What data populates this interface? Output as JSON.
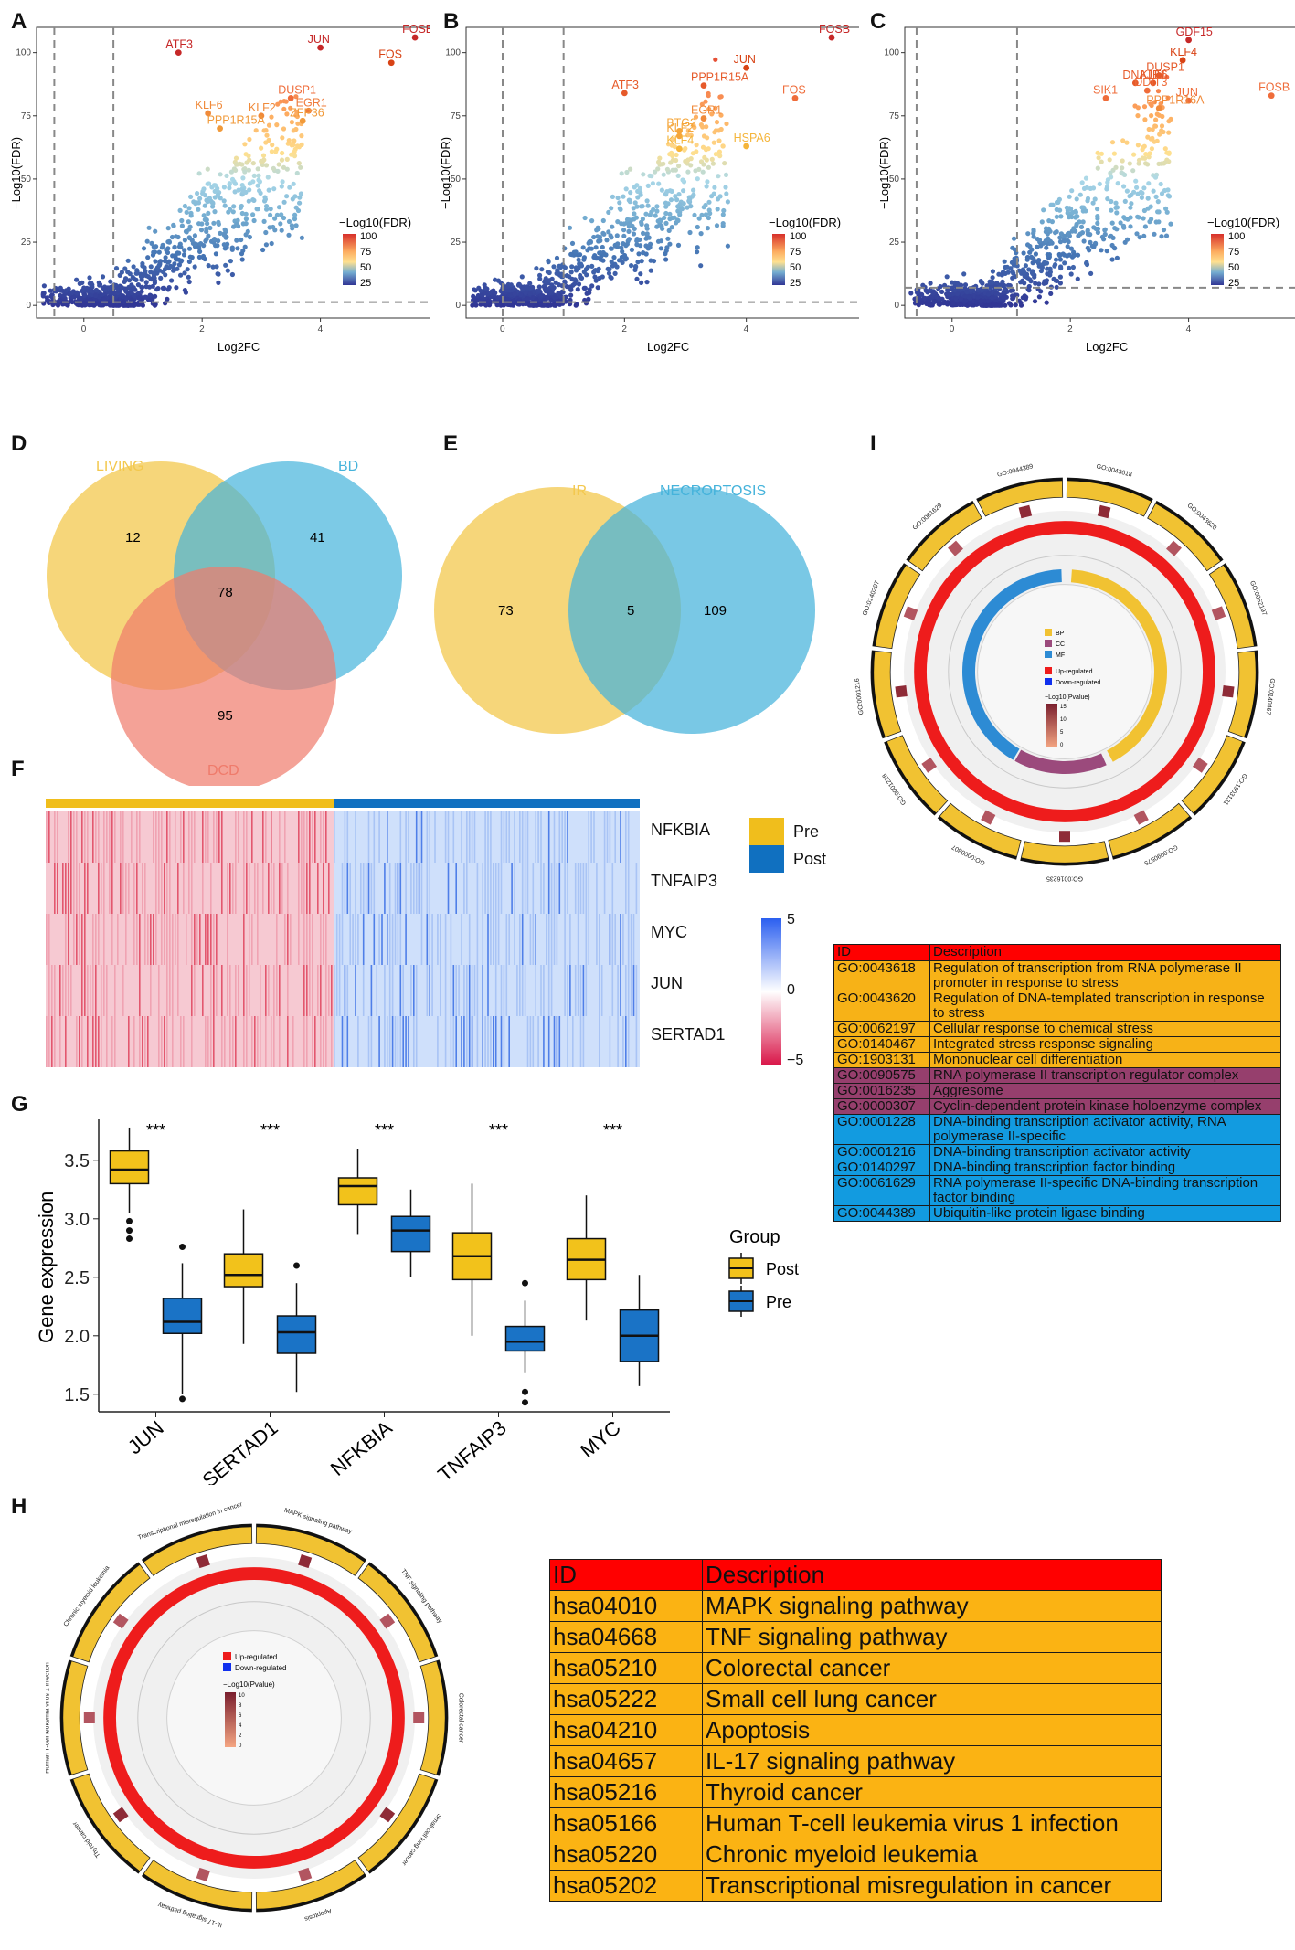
{
  "panels": {
    "A": "A",
    "B": "B",
    "C": "C",
    "D": "D",
    "E": "E",
    "F": "F",
    "G": "G",
    "H": "H",
    "I": "I"
  },
  "volcano": {
    "xlabel": "Log2FC",
    "ylabel": "−Log10(FDR)",
    "legend_title": "−Log10(FDR)",
    "legend_ticks": [
      "100",
      "75",
      "50",
      "25"
    ],
    "plots": [
      {
        "id": "A",
        "xticks": [
          "0",
          "2",
          "4"
        ],
        "yticks": [
          "0",
          "25",
          "50",
          "75",
          "100"
        ],
        "labels": [
          {
            "gene": "ATF3",
            "x": 1.6,
            "y": 100,
            "color": "#c62828"
          },
          {
            "gene": "JUN",
            "x": 4.0,
            "y": 102,
            "color": "#c62828"
          },
          {
            "gene": "FOSB",
            "x": 5.6,
            "y": 106,
            "color": "#c62828"
          },
          {
            "gene": "FOS",
            "x": 5.2,
            "y": 96,
            "color": "#d84315"
          },
          {
            "gene": "DUSP1",
            "x": 3.5,
            "y": 82,
            "color": "#ef6c3a"
          },
          {
            "gene": "EGR1",
            "x": 3.8,
            "y": 77,
            "color": "#ef7a3a"
          },
          {
            "gene": "KLF2",
            "x": 3.0,
            "y": 75,
            "color": "#f08a3a"
          },
          {
            "gene": "KLF6",
            "x": 2.1,
            "y": 76,
            "color": "#f08a3a"
          },
          {
            "gene": "ZFP36",
            "x": 3.7,
            "y": 73,
            "color": "#f19a3a"
          },
          {
            "gene": "PPP1R15A",
            "x": 2.3,
            "y": 70,
            "color": "#f19a3a"
          }
        ]
      },
      {
        "id": "B",
        "xticks": [
          "0",
          "2",
          "4"
        ],
        "yticks": [
          "0",
          "25",
          "50",
          "75",
          "100"
        ],
        "labels": [
          {
            "gene": "FOSB",
            "x": 5.4,
            "y": 106,
            "color": "#c62828"
          },
          {
            "gene": "JUN",
            "x": 4.0,
            "y": 94,
            "color": "#d84315"
          },
          {
            "gene": "ATF3",
            "x": 2.0,
            "y": 84,
            "color": "#e65a2a"
          },
          {
            "gene": "PPP1R15A",
            "x": 3.3,
            "y": 87,
            "color": "#e65a2a"
          },
          {
            "gene": "FOS",
            "x": 4.8,
            "y": 82,
            "color": "#ef6c3a"
          },
          {
            "gene": "EGR1",
            "x": 3.3,
            "y": 74,
            "color": "#f08a3a"
          },
          {
            "gene": "BTG2",
            "x": 2.9,
            "y": 69,
            "color": "#f5a63a"
          },
          {
            "gene": "KLF2",
            "x": 2.9,
            "y": 67,
            "color": "#f5a63a"
          },
          {
            "gene": "HSPA6",
            "x": 4.0,
            "y": 63,
            "color": "#f5b53a"
          },
          {
            "gene": "KLF4",
            "x": 2.9,
            "y": 62,
            "color": "#f5b53a"
          }
        ]
      },
      {
        "id": "C",
        "xticks": [
          "0",
          "2",
          "4"
        ],
        "yticks": [
          "0",
          "25",
          "50",
          "75",
          "100"
        ],
        "labels": [
          {
            "gene": "GDF15",
            "x": 4.0,
            "y": 105,
            "color": "#c62828"
          },
          {
            "gene": "KLF4",
            "x": 3.9,
            "y": 97,
            "color": "#d84315"
          },
          {
            "gene": "DNAJB1",
            "x": 3.1,
            "y": 88,
            "color": "#e65a2a"
          },
          {
            "gene": "DUSP1",
            "x": 3.5,
            "y": 91,
            "color": "#e65a2a"
          },
          {
            "gene": "KLF6",
            "x": 3.4,
            "y": 88,
            "color": "#e65a2a"
          },
          {
            "gene": "SIK1",
            "x": 2.6,
            "y": 82,
            "color": "#ef6c3a"
          },
          {
            "gene": "DDIT3",
            "x": 3.3,
            "y": 85,
            "color": "#ef6c3a"
          },
          {
            "gene": "JUN",
            "x": 4.0,
            "y": 81,
            "color": "#ef6c3a"
          },
          {
            "gene": "FOSB",
            "x": 5.4,
            "y": 83,
            "color": "#ef6c3a"
          },
          {
            "gene": "PPP1R16A",
            "x": 3.5,
            "y": 78,
            "color": "#f08a3a"
          }
        ]
      }
    ]
  },
  "venn_d": {
    "sets": [
      "LIVING",
      "BD",
      "DCD"
    ],
    "counts": {
      "living_only": "12",
      "bd_only": "41",
      "dcd_only": "95",
      "all_three": "78"
    },
    "colors": {
      "living": "#f3c84e",
      "bd": "#45b3db",
      "dcd": "#ef7b6b"
    }
  },
  "venn_e": {
    "sets": [
      "IR",
      "NECROPTOSIS"
    ],
    "counts": {
      "ir_only": "73",
      "intersection": "5",
      "necroptosis_only": "109"
    },
    "colors": {
      "ir": "#f3c84e",
      "necroptosis": "#45b3db"
    }
  },
  "heatmap": {
    "genes": [
      "NFKBIA",
      "TNFAIP3",
      "MYC",
      "JUN",
      "SERTAD1"
    ],
    "groups": [
      "Pre",
      "Post"
    ],
    "group_colors": {
      "Pre": "#f0be1c",
      "Post": "#1070c0"
    },
    "scale_ticks": [
      "5",
      "0",
      "−5"
    ]
  },
  "boxplot": {
    "ylabel": "Gene expression",
    "legend_title": "Group",
    "legend": [
      {
        "name": "Post",
        "color": "#f2c21b"
      },
      {
        "name": "Pre",
        "color": "#1a73c6"
      }
    ],
    "yticks": [
      "1.5",
      "2.0",
      "2.5",
      "3.0",
      "3.5"
    ],
    "sig": "***"
  },
  "chart_data": {
    "type": "box",
    "ylabel": "Gene expression",
    "ylim": [
      1.35,
      3.85
    ],
    "categories": [
      "JUN",
      "SERTAD1",
      "NFKBIA",
      "TNFAIP3",
      "MYC"
    ],
    "series": [
      {
        "name": "Post",
        "boxes": [
          {
            "min": 3.05,
            "q1": 3.3,
            "median": 3.42,
            "q3": 3.58,
            "max": 3.78,
            "outliers": [
              2.98,
              2.9,
              2.83
            ]
          },
          {
            "min": 1.93,
            "q1": 2.42,
            "median": 2.52,
            "q3": 2.7,
            "max": 3.08,
            "outliers": []
          },
          {
            "min": 2.87,
            "q1": 3.12,
            "median": 3.28,
            "q3": 3.35,
            "max": 3.6,
            "outliers": []
          },
          {
            "min": 2.0,
            "q1": 2.48,
            "median": 2.68,
            "q3": 2.88,
            "max": 3.3,
            "outliers": []
          },
          {
            "min": 2.13,
            "q1": 2.48,
            "median": 2.65,
            "q3": 2.83,
            "max": 3.2,
            "outliers": []
          }
        ]
      },
      {
        "name": "Pre",
        "boxes": [
          {
            "min": 1.5,
            "q1": 2.02,
            "median": 2.12,
            "q3": 2.32,
            "max": 2.62,
            "outliers": [
              2.76,
              1.46
            ]
          },
          {
            "min": 1.52,
            "q1": 1.85,
            "median": 2.03,
            "q3": 2.17,
            "max": 2.45,
            "outliers": [
              2.6
            ]
          },
          {
            "min": 2.5,
            "q1": 2.72,
            "median": 2.9,
            "q3": 3.02,
            "max": 3.25,
            "outliers": []
          },
          {
            "min": 1.68,
            "q1": 1.87,
            "median": 1.95,
            "q3": 2.08,
            "max": 2.3,
            "outliers": [
              2.45,
              1.52,
              1.43
            ]
          },
          {
            "min": 1.57,
            "q1": 1.78,
            "median": 2.0,
            "q3": 2.22,
            "max": 2.52,
            "outliers": []
          }
        ]
      }
    ]
  },
  "circos_i": {
    "legend_categories": [
      "BP",
      "CC",
      "MF"
    ],
    "legend_category_colors": [
      "#f1c232",
      "#9b4a7c",
      "#2d8bd4"
    ],
    "legend_reg": [
      "Up-regulated",
      "Down-regulated"
    ],
    "legend_pv_title": "−Log10(Pvalue)",
    "legend_pv_ticks": [
      "15",
      "10",
      "5",
      "0"
    ],
    "sector_labels": [
      "GO:0043618",
      "GO:0043620",
      "GO:0062197",
      "GO:0140467",
      "GO:1903131",
      "GO:0090575",
      "GO:0016235",
      "GO:0000307",
      "GO:0001228",
      "GO:0001216",
      "GO:0140297",
      "GO:0061629",
      "GO:0044389"
    ]
  },
  "go_table": {
    "header": {
      "id": "ID",
      "desc": "Description"
    },
    "rows": [
      {
        "id": "GO:0043618",
        "desc": "Regulation of transcription from RNA polymerase II promoter in response to stress",
        "color": "#f7b217"
      },
      {
        "id": "GO:0043620",
        "desc": "Regulation of DNA-templated transcription in response to stress",
        "color": "#f7b217"
      },
      {
        "id": "GO:0062197",
        "desc": "Cellular  response to chemical stress",
        "color": "#f7b217"
      },
      {
        "id": "GO:0140467",
        "desc": "Integrated stress response signaling",
        "color": "#f7b217"
      },
      {
        "id": "GO:1903131",
        "desc": "Mononuclear cell differentiation",
        "color": "#f7b217"
      },
      {
        "id": "GO:0090575",
        "desc": "RNA polymerase II transcription regulator complex",
        "color": "#963f6d"
      },
      {
        "id": "GO:0016235",
        "desc": "Aggresome",
        "color": "#963f6d"
      },
      {
        "id": "GO:0000307",
        "desc": "Cyclin-dependent protein kinase holoenzyme complex",
        "color": "#963f6d"
      },
      {
        "id": "GO:0001228",
        "desc": "DNA-binding transcription activator activity, RNA polymerase II-specific",
        "color": "#129be0"
      },
      {
        "id": "GO:0001216",
        "desc": "DNA-binding transcription activator activity",
        "color": "#129be0"
      },
      {
        "id": "GO:0140297",
        "desc": "DNA-binding transcription factor binding",
        "color": "#129be0"
      },
      {
        "id": "GO:0061629",
        "desc": "RNA polymerase II-specific DNA-binding transcription factor binding",
        "color": "#129be0"
      },
      {
        "id": "GO:0044389",
        "desc": "Ubiquitin-like protein ligase binding",
        "color": "#129be0"
      }
    ]
  },
  "circos_h": {
    "legend_reg": [
      "Up-regulated",
      "Down-regulated"
    ],
    "legend_pv_title": "−Log10(Pvalue)",
    "legend_pv_ticks": [
      "10",
      "8",
      "6",
      "4",
      "2",
      "0"
    ],
    "sector_labels": [
      "MAPK signaling pathway",
      "TNF signaling pathway",
      "Colorectal cancer",
      "Small cell lung cancer",
      "Apoptosis",
      "IL-17 signaling pathway",
      "Thyroid cancer",
      "Human T-cell leukemia virus 1 infection",
      "Chronic myeloid leukemia",
      "Transcriptional misregulation in cancer"
    ]
  },
  "kegg_table": {
    "header": {
      "id": "ID",
      "desc": "Description"
    },
    "header_color": "#ff0000",
    "row_color": "#fbb313",
    "rows": [
      {
        "id": "hsa04010",
        "desc": "MAPK signaling pathway"
      },
      {
        "id": "hsa04668",
        "desc": "TNF signaling pathway"
      },
      {
        "id": "hsa05210",
        "desc": "Colorectal cancer"
      },
      {
        "id": "hsa05222",
        "desc": "Small cell lung cancer"
      },
      {
        "id": "hsa04210",
        "desc": "Apoptosis"
      },
      {
        "id": "hsa04657",
        "desc": "IL-17 signaling pathway"
      },
      {
        "id": "hsa05216",
        "desc": "Thyroid cancer"
      },
      {
        "id": "hsa05166",
        "desc": "Human T-cell leukemia virus 1 infection"
      },
      {
        "id": "hsa05220",
        "desc": "Chronic myeloid leukemia"
      },
      {
        "id": "hsa05202",
        "desc": "Transcriptional misregulation in cancer"
      }
    ]
  }
}
